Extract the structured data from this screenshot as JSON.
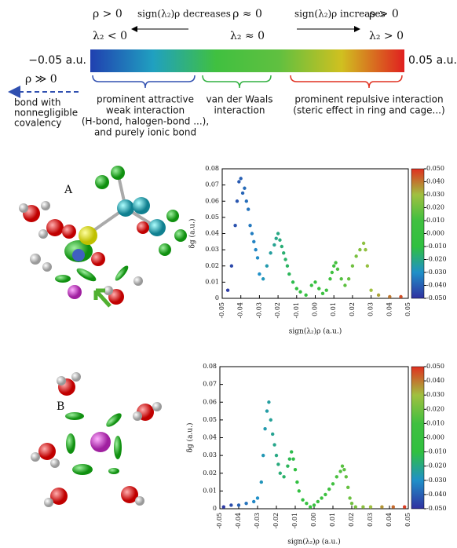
{
  "scale": {
    "conditions": [
      {
        "rho": "ρ > 0",
        "lambda": "λ₂ < 0"
      },
      {
        "rho": "ρ ≈ 0",
        "lambda": "λ₂ ≈ 0"
      },
      {
        "rho": "ρ > 0",
        "lambda": "λ₂ > 0"
      }
    ],
    "decreases": "sign(λ₂)ρ decreases",
    "increases": "sign(λ₂)ρ increases",
    "min_label": "−0.05 a.u.",
    "max_label": "0.05 a.u.",
    "colors": [
      "#2040b0",
      "#20a0c0",
      "#40c040",
      "#60c040",
      "#d0c020",
      "#e02020"
    ],
    "covalent": {
      "rho": "ρ ≫ 0",
      "lines": [
        "bond with",
        "nonnegligible",
        "covalency"
      ]
    },
    "regions": [
      {
        "lines": [
          "prominent attractive",
          "weak interaction",
          "(H-bond, halogen-bond ...),",
          "and purely ionic bond"
        ],
        "color": "#3050b0"
      },
      {
        "lines": [
          "van der Waals",
          "interaction"
        ],
        "color": "#30b040"
      },
      {
        "lines": [
          "prominent repulsive interaction",
          "(steric effect in ring and cage...)"
        ],
        "color": "#e03020"
      }
    ]
  },
  "panels": [
    "A",
    "B"
  ],
  "chart_data": [
    {
      "type": "scatter",
      "x": [
        -0.047,
        -0.045,
        -0.043,
        -0.042,
        -0.041,
        -0.04,
        -0.039,
        -0.038,
        -0.037,
        -0.036,
        -0.035,
        -0.034,
        -0.033,
        -0.032,
        -0.031,
        -0.03,
        -0.028,
        -0.026,
        -0.024,
        -0.022,
        -0.021,
        -0.02,
        -0.019,
        -0.018,
        -0.017,
        -0.016,
        -0.015,
        -0.014,
        -0.012,
        -0.01,
        -0.008,
        -0.005,
        -0.002,
        0.0,
        0.002,
        0.004,
        0.006,
        0.008,
        0.009,
        0.01,
        0.011,
        0.012,
        0.014,
        0.016,
        0.018,
        0.02,
        0.022,
        0.024,
        0.026,
        0.027,
        0.028,
        0.03,
        0.034,
        0.04,
        0.046
      ],
      "y": [
        0.005,
        0.02,
        0.045,
        0.06,
        0.072,
        0.074,
        0.065,
        0.068,
        0.06,
        0.055,
        0.045,
        0.04,
        0.035,
        0.03,
        0.025,
        0.015,
        0.012,
        0.02,
        0.028,
        0.033,
        0.037,
        0.04,
        0.036,
        0.032,
        0.028,
        0.024,
        0.02,
        0.015,
        0.01,
        0.006,
        0.004,
        0.002,
        0.008,
        0.01,
        0.006,
        0.003,
        0.005,
        0.012,
        0.016,
        0.02,
        0.022,
        0.018,
        0.012,
        0.008,
        0.012,
        0.02,
        0.026,
        0.03,
        0.034,
        0.03,
        0.02,
        0.005,
        0.002,
        0.001,
        0.001
      ],
      "xlabel": "sign(λ₂)ρ (a.u.)",
      "ylabel": "δg (a.u.)",
      "xlim": [
        -0.05,
        0.05
      ],
      "ylim": [
        0,
        0.08
      ],
      "xticks": [
        -0.05,
        -0.04,
        -0.03,
        -0.02,
        -0.01,
        {
          "value": 0,
          "label": "0.00"
        },
        0.01,
        0.02,
        0.03,
        0.04,
        0.05
      ],
      "yticks": [
        0,
        0.01,
        0.02,
        0.03,
        0.04,
        0.05,
        0.06,
        0.07,
        0.08
      ],
      "colorbar": {
        "lim": [
          -0.05,
          0.05
        ],
        "ticks": [
          {
            "value": 0.05,
            "label": "0.050"
          },
          {
            "value": 0.04,
            "label": "0.040"
          },
          {
            "value": 0.03,
            "label": "0.030"
          },
          {
            "value": 0.02,
            "label": "0.020"
          },
          {
            "value": 0.01,
            "label": "0.010"
          },
          {
            "value": 0,
            "label": "0.000"
          },
          {
            "value": -0.01,
            "label": "-0.010"
          },
          {
            "value": -0.02,
            "label": "-0.020"
          },
          {
            "value": -0.03,
            "label": "-0.030"
          },
          {
            "value": -0.04,
            "label": "-0.040"
          },
          {
            "value": -0.05,
            "label": "-0.050"
          }
        ],
        "colors": [
          "#3030a0",
          "#2090c8",
          "#30c040",
          "#40c040",
          "#a0c040",
          "#e03020"
        ]
      }
    },
    {
      "type": "scatter",
      "x": [
        -0.048,
        -0.044,
        -0.04,
        -0.036,
        -0.032,
        -0.03,
        -0.028,
        -0.027,
        -0.026,
        -0.025,
        -0.024,
        -0.023,
        -0.022,
        -0.021,
        -0.02,
        -0.019,
        -0.018,
        -0.016,
        -0.014,
        -0.013,
        -0.012,
        -0.011,
        -0.01,
        -0.009,
        -0.008,
        -0.006,
        -0.004,
        -0.002,
        0.0,
        0.002,
        0.004,
        0.006,
        0.008,
        0.01,
        0.012,
        0.014,
        0.015,
        0.016,
        0.017,
        0.018,
        0.019,
        0.02,
        0.022,
        0.026,
        0.03,
        0.036,
        0.042,
        0.048
      ],
      "y": [
        0.001,
        0.002,
        0.002,
        0.003,
        0.004,
        0.006,
        0.015,
        0.03,
        0.045,
        0.055,
        0.06,
        0.05,
        0.042,
        0.036,
        0.03,
        0.025,
        0.02,
        0.018,
        0.024,
        0.028,
        0.032,
        0.028,
        0.022,
        0.015,
        0.01,
        0.005,
        0.003,
        0.001,
        0.002,
        0.004,
        0.006,
        0.008,
        0.011,
        0.014,
        0.018,
        0.021,
        0.024,
        0.022,
        0.018,
        0.012,
        0.006,
        0.003,
        0.001,
        0.001,
        0.001,
        0.001,
        0.001,
        0.001
      ],
      "xlabel": "sign(λ₂)ρ (a.u.)",
      "ylabel": "δg (a.u.)",
      "xlim": [
        -0.05,
        0.05
      ],
      "ylim": [
        0,
        0.08
      ],
      "xticks": [
        -0.05,
        -0.04,
        -0.03,
        -0.02,
        -0.01,
        {
          "value": 0,
          "label": "0.00"
        },
        0.01,
        0.02,
        0.03,
        0.04,
        0.05
      ],
      "yticks": [
        0,
        0.01,
        0.02,
        0.03,
        0.04,
        0.05,
        0.06,
        0.07,
        0.08
      ],
      "colorbar": {
        "lim": [
          -0.05,
          0.05
        ],
        "ticks": [
          {
            "value": 0.05,
            "label": "0.050"
          },
          {
            "value": 0.04,
            "label": "0.040"
          },
          {
            "value": 0.03,
            "label": "0.030"
          },
          {
            "value": 0.02,
            "label": "0.020"
          },
          {
            "value": 0.01,
            "label": "0.010"
          },
          {
            "value": 0,
            "label": "0.000"
          },
          {
            "value": -0.01,
            "label": "-0.010"
          },
          {
            "value": -0.02,
            "label": "-0.020"
          },
          {
            "value": -0.03,
            "label": "-0.030"
          },
          {
            "value": -0.04,
            "label": "-0.040"
          },
          {
            "value": -0.05,
            "label": "-0.050"
          }
        ],
        "colors": [
          "#3030a0",
          "#2090c8",
          "#30c040",
          "#40c040",
          "#a0c040",
          "#e03020"
        ]
      }
    }
  ]
}
